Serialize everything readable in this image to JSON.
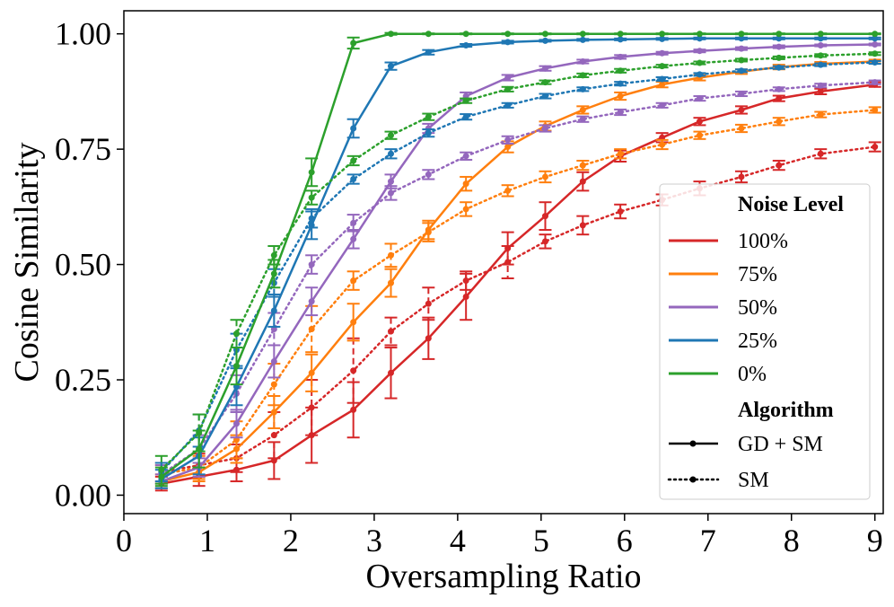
{
  "chart_data": {
    "type": "line",
    "xlabel": "Oversampling Ratio",
    "ylabel": "Cosine Similarity",
    "xlim": [
      0,
      9.1
    ],
    "ylim": [
      -0.04,
      1.05
    ],
    "xticks": [
      "0",
      "1",
      "2",
      "3",
      "4",
      "5",
      "6",
      "7",
      "8",
      "9"
    ],
    "yticks": [
      "0.00",
      "0.25",
      "0.50",
      "0.75",
      "1.00"
    ],
    "grid": false,
    "legend_position": "lower-right",
    "legend": {
      "noise_title": "Noise Level",
      "algorithm_title": "Algorithm",
      "noise_levels": [
        {
          "label": "100%",
          "color": "#d62728"
        },
        {
          "label": "75%",
          "color": "#ff7f0e"
        },
        {
          "label": "50%",
          "color": "#9467bd"
        },
        {
          "label": "25%",
          "color": "#1f77b4"
        },
        {
          "label": "0%",
          "color": "#2ca02c"
        }
      ],
      "algorithms": [
        {
          "label": "GD + SM",
          "style": "solid"
        },
        {
          "label": "SM",
          "style": "dotted"
        }
      ]
    },
    "x": [
      0.45,
      0.9,
      1.35,
      1.8,
      2.25,
      2.75,
      3.2,
      3.65,
      4.1,
      4.6,
      5.05,
      5.5,
      5.95,
      6.45,
      6.9,
      7.4,
      7.85,
      8.35,
      9.0
    ],
    "series": [
      {
        "noise": "100%",
        "algorithm": "GD + SM",
        "color": "#d62728",
        "style": "solid",
        "values": [
          0.025,
          0.04,
          0.055,
          0.075,
          0.13,
          0.185,
          0.265,
          0.34,
          0.43,
          0.535,
          0.605,
          0.68,
          0.735,
          0.775,
          0.81,
          0.835,
          0.86,
          0.875,
          0.89
        ],
        "err": [
          0.015,
          0.02,
          0.025,
          0.04,
          0.06,
          0.06,
          0.055,
          0.045,
          0.05,
          0.035,
          0.03,
          0.02,
          0.012,
          0.01,
          0.008,
          0.008,
          0.006,
          0.006,
          0.005
        ]
      },
      {
        "noise": "100%",
        "algorithm": "SM",
        "color": "#d62728",
        "style": "dotted",
        "values": [
          0.05,
          0.065,
          0.08,
          0.13,
          0.19,
          0.27,
          0.355,
          0.415,
          0.465,
          0.505,
          0.55,
          0.585,
          0.615,
          0.64,
          0.665,
          0.69,
          0.715,
          0.74,
          0.755
        ],
        "err": [
          0.02,
          0.025,
          0.03,
          0.05,
          0.06,
          0.07,
          0.03,
          0.035,
          0.02,
          0.035,
          0.015,
          0.02,
          0.015,
          0.012,
          0.015,
          0.012,
          0.01,
          0.01,
          0.01
        ]
      },
      {
        "noise": "75%",
        "algorithm": "GD + SM",
        "color": "#ff7f0e",
        "style": "solid",
        "values": [
          0.03,
          0.05,
          0.1,
          0.18,
          0.265,
          0.375,
          0.46,
          0.575,
          0.675,
          0.755,
          0.8,
          0.835,
          0.865,
          0.89,
          0.905,
          0.918,
          0.928,
          0.935,
          0.94
        ],
        "err": [
          0.015,
          0.02,
          0.03,
          0.035,
          0.04,
          0.04,
          0.03,
          0.02,
          0.015,
          0.012,
          0.01,
          0.008,
          0.008,
          0.006,
          0.006,
          0.005,
          0.005,
          0.004,
          0.004
        ]
      },
      {
        "noise": "75%",
        "algorithm": "SM",
        "color": "#ff7f0e",
        "style": "dotted",
        "values": [
          0.045,
          0.06,
          0.12,
          0.24,
          0.36,
          0.465,
          0.52,
          0.57,
          0.62,
          0.66,
          0.69,
          0.715,
          0.74,
          0.76,
          0.78,
          0.795,
          0.81,
          0.825,
          0.835
        ],
        "err": [
          0.02,
          0.025,
          0.04,
          0.045,
          0.05,
          0.02,
          0.025,
          0.02,
          0.015,
          0.012,
          0.012,
          0.01,
          0.01,
          0.01,
          0.008,
          0.008,
          0.008,
          0.006,
          0.006
        ]
      },
      {
        "noise": "50%",
        "algorithm": "GD + SM",
        "color": "#9467bd",
        "style": "solid",
        "values": [
          0.03,
          0.06,
          0.155,
          0.29,
          0.42,
          0.555,
          0.68,
          0.795,
          0.865,
          0.905,
          0.925,
          0.94,
          0.95,
          0.958,
          0.963,
          0.968,
          0.972,
          0.975,
          0.977
        ],
        "err": [
          0.015,
          0.02,
          0.03,
          0.035,
          0.03,
          0.02,
          0.015,
          0.01,
          0.008,
          0.006,
          0.005,
          0.004,
          0.004,
          0.003,
          0.003,
          0.003,
          0.003,
          0.002,
          0.002
        ]
      },
      {
        "noise": "50%",
        "algorithm": "SM",
        "color": "#9467bd",
        "style": "dotted",
        "values": [
          0.045,
          0.1,
          0.22,
          0.36,
          0.5,
          0.59,
          0.655,
          0.695,
          0.735,
          0.77,
          0.795,
          0.815,
          0.83,
          0.845,
          0.86,
          0.87,
          0.88,
          0.888,
          0.895
        ],
        "err": [
          0.02,
          0.03,
          0.04,
          0.035,
          0.02,
          0.018,
          0.015,
          0.01,
          0.008,
          0.008,
          0.007,
          0.006,
          0.006,
          0.005,
          0.005,
          0.005,
          0.004,
          0.004,
          0.004
        ]
      },
      {
        "noise": "25%",
        "algorithm": "GD + SM",
        "color": "#1f77b4",
        "style": "solid",
        "values": [
          0.035,
          0.085,
          0.235,
          0.4,
          0.585,
          0.795,
          0.93,
          0.96,
          0.975,
          0.982,
          0.985,
          0.987,
          0.988,
          0.989,
          0.99,
          0.99,
          0.99,
          0.99,
          0.99
        ],
        "err": [
          0.02,
          0.04,
          0.04,
          0.035,
          0.03,
          0.02,
          0.008,
          0.005,
          0.003,
          0.003,
          0.002,
          0.002,
          0.002,
          0.002,
          0.002,
          0.002,
          0.002,
          0.002,
          0.002
        ]
      },
      {
        "noise": "25%",
        "algorithm": "SM",
        "color": "#1f77b4",
        "style": "dotted",
        "values": [
          0.05,
          0.14,
          0.315,
          0.46,
          0.6,
          0.685,
          0.74,
          0.785,
          0.82,
          0.845,
          0.865,
          0.88,
          0.892,
          0.902,
          0.912,
          0.92,
          0.927,
          0.933,
          0.938
        ],
        "err": [
          0.02,
          0.035,
          0.035,
          0.03,
          0.02,
          0.01,
          0.01,
          0.008,
          0.006,
          0.005,
          0.005,
          0.004,
          0.004,
          0.004,
          0.003,
          0.003,
          0.003,
          0.003,
          0.003
        ]
      },
      {
        "noise": "0%",
        "algorithm": "GD + SM",
        "color": "#2ca02c",
        "style": "solid",
        "values": [
          0.04,
          0.1,
          0.28,
          0.48,
          0.7,
          0.98,
          1.0,
          1.0,
          1.0,
          1.0,
          1.0,
          1.0,
          1.0,
          1.0,
          1.0,
          1.0,
          1.0,
          1.0,
          1.0
        ],
        "err": [
          0.02,
          0.04,
          0.04,
          0.03,
          0.03,
          0.012,
          0.002,
          0.001,
          0.001,
          0.001,
          0.001,
          0.001,
          0.001,
          0.001,
          0.001,
          0.001,
          0.001,
          0.001,
          0.001
        ]
      },
      {
        "noise": "0%",
        "algorithm": "SM",
        "color": "#2ca02c",
        "style": "dotted",
        "values": [
          0.055,
          0.135,
          0.35,
          0.52,
          0.645,
          0.725,
          0.78,
          0.82,
          0.855,
          0.88,
          0.895,
          0.91,
          0.92,
          0.93,
          0.937,
          0.943,
          0.948,
          0.953,
          0.957
        ],
        "err": [
          0.03,
          0.04,
          0.03,
          0.02,
          0.015,
          0.01,
          0.008,
          0.007,
          0.005,
          0.005,
          0.004,
          0.004,
          0.004,
          0.003,
          0.003,
          0.003,
          0.003,
          0.003,
          0.003
        ]
      }
    ]
  }
}
